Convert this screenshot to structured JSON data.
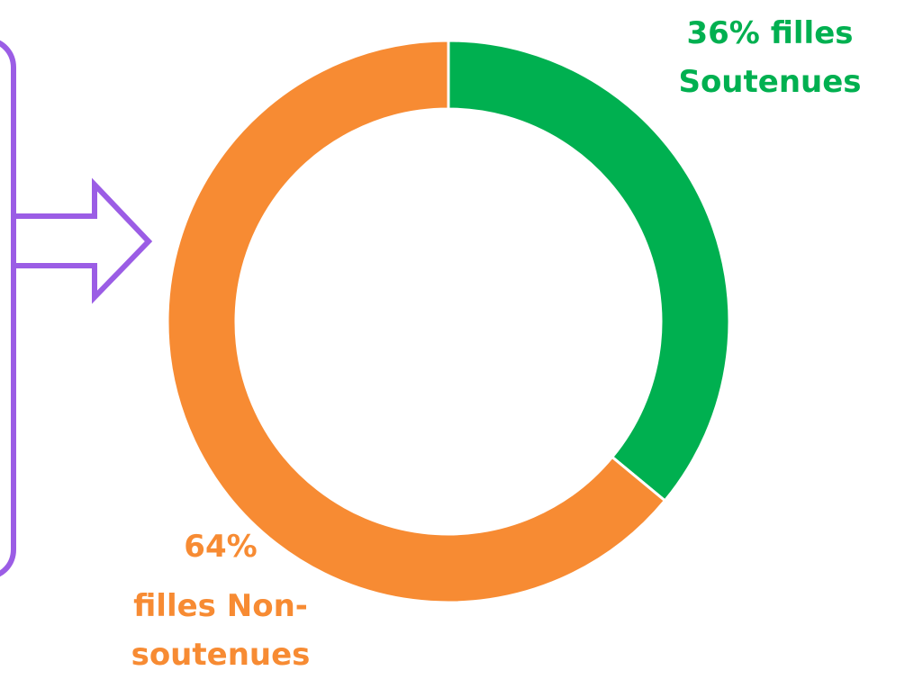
{
  "chart_data": {
    "type": "donut",
    "categories": [
      "filles Soutenues",
      "filles Non-soutenues"
    ],
    "values": [
      36,
      64
    ],
    "value_labels": [
      "36%",
      "64%"
    ],
    "colors": [
      "#00b050",
      "#f78b33"
    ]
  }
}
